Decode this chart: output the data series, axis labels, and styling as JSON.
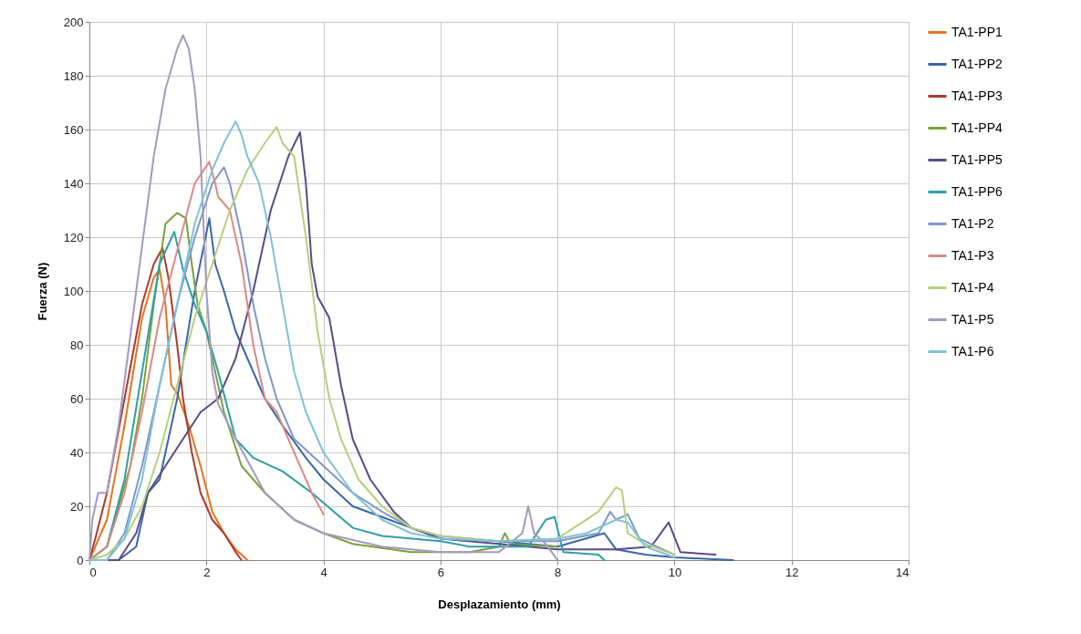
{
  "chart_data": {
    "type": "line",
    "xlabel": "Desplazamiento  (mm)",
    "ylabel": "Fuerza  (N)",
    "xlim": [
      0,
      14
    ],
    "xticks": [
      0,
      2,
      4,
      6,
      8,
      10,
      12,
      14
    ],
    "ylim": [
      0,
      200
    ],
    "yticks": [
      0,
      20,
      40,
      60,
      80,
      100,
      120,
      140,
      160,
      180,
      200
    ],
    "grid": true,
    "legend": "right",
    "marker": "none",
    "line_style": "solid",
    "series": [
      {
        "name": "TA1-PP1",
        "color": "#e8731e",
        "x": [
          0,
          0.3,
          0.6,
          0.9,
          1.1,
          1.2,
          1.3,
          1.4,
          1.5,
          1.7,
          1.9,
          2.1,
          2.3,
          2.5,
          2.7
        ],
        "values": [
          0,
          15,
          50,
          90,
          105,
          108,
          95,
          65,
          62,
          50,
          35,
          18,
          10,
          4,
          0
        ]
      },
      {
        "name": "TA1-PP2",
        "color": "#3a66a8",
        "x": [
          0,
          0.5,
          0.8,
          1.0,
          1.2,
          1.5,
          1.8,
          2.05,
          2.15,
          2.3,
          2.5,
          2.8,
          3.0,
          3.3,
          3.7,
          4.0,
          4.5,
          5.0,
          5.5,
          6,
          7,
          7.5,
          8,
          8.8,
          9.0,
          9.5,
          10,
          11
        ],
        "values": [
          0,
          0,
          5,
          25,
          30,
          60,
          100,
          127,
          110,
          100,
          85,
          70,
          60,
          50,
          38,
          30,
          20,
          16,
          12,
          8,
          7,
          6,
          5,
          10,
          4,
          2,
          1,
          0
        ]
      },
      {
        "name": "TA1-PP3",
        "color": "#b0392d",
        "x": [
          0,
          0.1,
          0.3,
          0.6,
          0.9,
          1.1,
          1.25,
          1.35,
          1.5,
          1.6,
          1.75,
          1.9,
          2.1,
          2.3,
          2.5,
          2.6
        ],
        "values": [
          0,
          8,
          25,
          60,
          95,
          110,
          116,
          105,
          80,
          60,
          40,
          25,
          15,
          10,
          3,
          0
        ]
      },
      {
        "name": "TA1-PP4",
        "color": "#7aa23a",
        "x": [
          0,
          0.3,
          0.5,
          0.7,
          0.9,
          1.1,
          1.3,
          1.5,
          1.65,
          1.75,
          1.85,
          2.0,
          2.1,
          2.3,
          2.6,
          3.0,
          3.5,
          4.0,
          4.5,
          5.5,
          6.5,
          7.0,
          7.1,
          7.2,
          8
        ],
        "values": [
          0,
          5,
          20,
          35,
          60,
          95,
          125,
          129,
          127,
          110,
          95,
          85,
          75,
          55,
          35,
          25,
          15,
          10,
          6,
          3,
          3,
          5,
          10,
          6,
          5
        ]
      },
      {
        "name": "TA1-PP5",
        "color": "#5a4a8a",
        "x": [
          0,
          0.5,
          0.8,
          1.0,
          1.3,
          1.6,
          1.9,
          2.2,
          2.5,
          2.8,
          3.1,
          3.4,
          3.6,
          3.7,
          3.8,
          3.9,
          4.1,
          4.3,
          4.5,
          4.8,
          5.2,
          5.5,
          6,
          7,
          8,
          9,
          9.6,
          9.9,
          10.1,
          10.7
        ],
        "values": [
          0,
          0,
          10,
          25,
          35,
          45,
          55,
          60,
          75,
          100,
          130,
          150,
          159,
          140,
          110,
          98,
          90,
          65,
          45,
          30,
          18,
          12,
          8,
          6,
          4,
          4,
          5,
          14,
          3,
          2
        ]
      },
      {
        "name": "TA1-PP6",
        "color": "#2e9ea8",
        "x": [
          0,
          0.3,
          0.6,
          0.9,
          1.2,
          1.45,
          1.6,
          1.8,
          2.0,
          2.2,
          2.5,
          2.8,
          3.3,
          3.8,
          4.5,
          5,
          6,
          6.5,
          7.5,
          7.8,
          7.95,
          8.1,
          8.7,
          8.8
        ],
        "values": [
          0,
          5,
          30,
          70,
          110,
          122,
          108,
          95,
          85,
          70,
          45,
          38,
          33,
          25,
          12,
          9,
          7,
          5,
          5,
          15,
          16,
          3,
          2,
          0
        ]
      },
      {
        "name": "TA1-P2",
        "color": "#7f97cc",
        "x": [
          0,
          0.3,
          0.6,
          0.9,
          1.2,
          1.5,
          1.8,
          2.1,
          2.3,
          2.4,
          2.6,
          2.8,
          3.0,
          3.2,
          3.5,
          4,
          4.5,
          5,
          5.5,
          6,
          7,
          8,
          8.7,
          8.9,
          9.0,
          9.2,
          9.4,
          10
        ],
        "values": [
          0,
          0,
          10,
          35,
          65,
          95,
          120,
          140,
          146,
          140,
          120,
          95,
          75,
          60,
          45,
          35,
          25,
          18,
          12,
          9,
          7,
          7,
          10,
          18,
          15,
          17,
          8,
          2
        ]
      },
      {
        "name": "TA1-P3",
        "color": "#d98a86",
        "x": [
          0,
          0.3,
          0.6,
          0.9,
          1.2,
          1.5,
          1.8,
          2.05,
          2.15,
          2.2,
          2.4,
          2.6,
          2.8,
          3.0,
          3.2,
          3.5,
          3.8,
          4.0
        ],
        "values": [
          0,
          5,
          25,
          55,
          90,
          115,
          140,
          148,
          140,
          135,
          130,
          110,
          80,
          60,
          55,
          40,
          25,
          17
        ]
      },
      {
        "name": "TA1-P4",
        "color": "#b5d07e",
        "x": [
          0,
          0.3,
          0.6,
          0.9,
          1.2,
          1.5,
          1.8,
          2.1,
          2.4,
          2.7,
          3.0,
          3.2,
          3.3,
          3.5,
          3.7,
          3.9,
          4.1,
          4.3,
          4.6,
          5.0,
          5.5,
          6,
          7,
          8,
          8.7,
          9.0,
          9.1,
          9.2,
          9.5,
          10
        ],
        "values": [
          0,
          2,
          8,
          20,
          40,
          65,
          90,
          110,
          130,
          145,
          155,
          161,
          155,
          150,
          120,
          85,
          60,
          45,
          30,
          20,
          12,
          9,
          7,
          8,
          18,
          27,
          26,
          10,
          6,
          2
        ]
      },
      {
        "name": "TA1-P5",
        "color": "#a699c0",
        "x": [
          0,
          0.05,
          0.15,
          0.3,
          0.5,
          0.8,
          1.1,
          1.3,
          1.5,
          1.6,
          1.7,
          1.8,
          1.9,
          2.0,
          2.1,
          2.2,
          2.5,
          3.0,
          3.5,
          4,
          5,
          6,
          7,
          7.4,
          7.5,
          7.6,
          7.8,
          7.9,
          8
        ],
        "values": [
          0,
          15,
          25,
          25,
          50,
          100,
          150,
          175,
          190,
          195,
          190,
          175,
          150,
          100,
          70,
          58,
          45,
          25,
          15,
          10,
          5,
          3,
          3,
          10,
          20,
          10,
          6,
          3,
          0
        ]
      },
      {
        "name": "TA1-P6",
        "color": "#7ec3d8",
        "x": [
          0,
          0.3,
          0.6,
          0.9,
          1.2,
          1.5,
          1.8,
          2.1,
          2.3,
          2.5,
          2.6,
          2.7,
          2.9,
          3.1,
          3.3,
          3.5,
          3.7,
          4,
          4.5,
          5,
          5.5,
          6,
          7,
          8,
          8.5,
          9.0,
          9.2,
          9.5,
          10
        ],
        "values": [
          0,
          0,
          8,
          30,
          65,
          95,
          125,
          145,
          155,
          163,
          158,
          150,
          140,
          120,
          95,
          70,
          55,
          40,
          25,
          15,
          10,
          8,
          7,
          8,
          10,
          15,
          14,
          5,
          1
        ]
      }
    ]
  }
}
